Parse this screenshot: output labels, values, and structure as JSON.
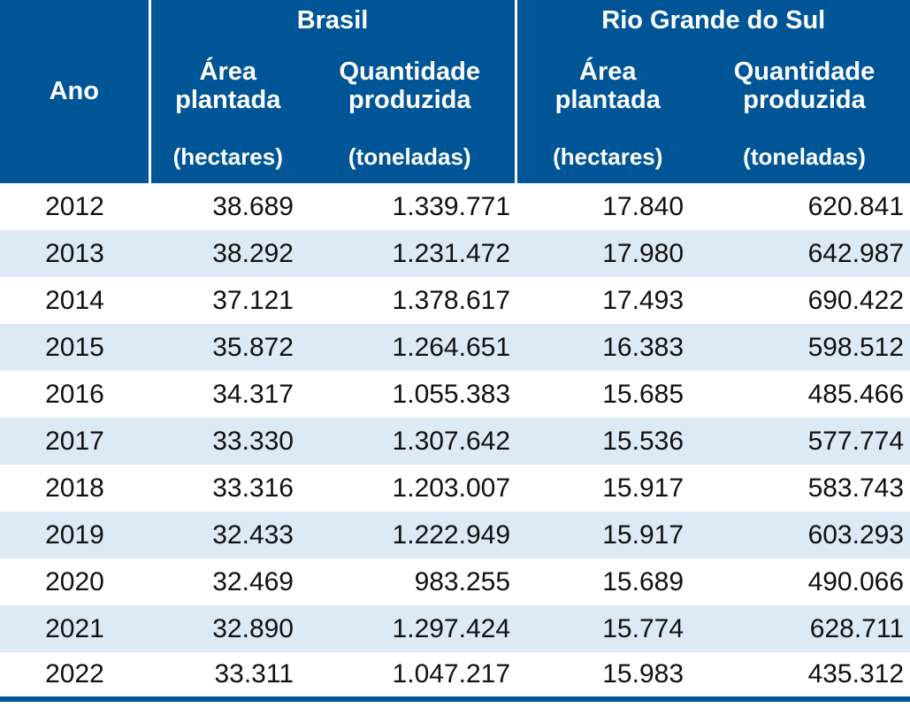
{
  "header": {
    "year": "Ano",
    "groups": [
      "Brasil",
      "Rio Grande do Sul"
    ],
    "area_line1": "Área",
    "area_line2": "plantada",
    "qty_line1": "Quantidade",
    "qty_line2": "produzida",
    "area_unit": "(hectares)",
    "qty_unit": "(toneladas)"
  },
  "rows": [
    [
      "2012",
      "38.689",
      "1.339.771",
      "17.840",
      "620.841"
    ],
    [
      "2013",
      "38.292",
      "1.231.472",
      "17.980",
      "642.987"
    ],
    [
      "2014",
      "37.121",
      "1.378.617",
      "17.493",
      "690.422"
    ],
    [
      "2015",
      "35.872",
      "1.264.651",
      "16.383",
      "598.512"
    ],
    [
      "2016",
      "34.317",
      "1.055.383",
      "15.685",
      "485.466"
    ],
    [
      "2017",
      "33.330",
      "1.307.642",
      "15.536",
      "577.774"
    ],
    [
      "2018",
      "33.316",
      "1.203.007",
      "15.917",
      "583.743"
    ],
    [
      "2019",
      "32.433",
      "1.222.949",
      "15.917",
      "603.293"
    ],
    [
      "2020",
      "32.469",
      "983.255",
      "15.689",
      "490.066"
    ],
    [
      "2021",
      "32.890",
      "1.297.424",
      "15.774",
      "628.711"
    ],
    [
      "2022",
      "33.311",
      "1.047.217",
      "15.983",
      "435.312"
    ]
  ],
  "colors": {
    "header": "#005596",
    "alt_row": "#dde9f5"
  }
}
